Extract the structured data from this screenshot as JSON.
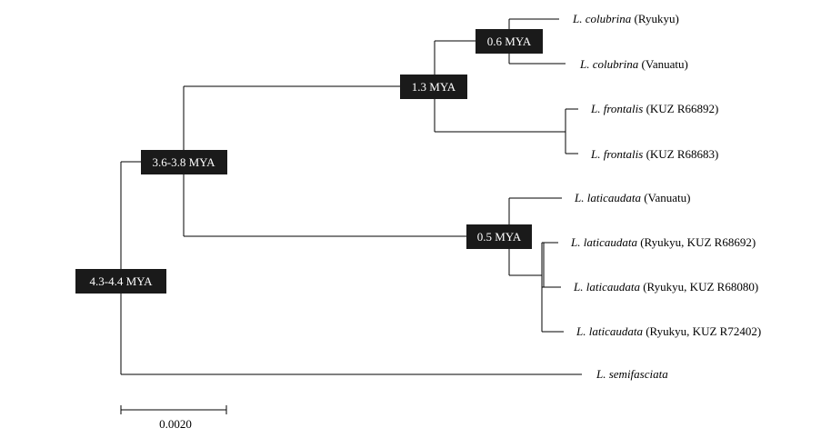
{
  "tree": {
    "nodes": {
      "root": "4.3-4.4 MYA",
      "n_laticauda_colubrina": "3.6-3.8 MYA",
      "n_colubrina_frontalis": "1.3 MYA",
      "n_colubrina": "0.6 MYA",
      "n_laticaudata": "0.5 MYA"
    },
    "taxa": {
      "colubrina_ryukyu": {
        "species": "L. colubrina",
        "detail": " (Ryukyu)"
      },
      "colubrina_vanuatu": {
        "species": "L. colubrina",
        "detail": " (Vanuatu)"
      },
      "frontalis_66892": {
        "species": "L. frontalis",
        "detail": " (KUZ R66892)"
      },
      "frontalis_68683": {
        "species": "L. frontalis",
        "detail": " (KUZ R68683)"
      },
      "laticaudata_vanuatu": {
        "species": "L. laticaudata",
        "detail": " (Vanuatu)"
      },
      "laticaudata_68692": {
        "species": "L. laticaudata",
        "detail": " (Ryukyu, KUZ R68692)"
      },
      "laticaudata_68080": {
        "species": "L. laticaudata",
        "detail": " (Ryukyu, KUZ R68080)"
      },
      "laticaudata_72402": {
        "species": "L. laticaudata",
        "detail": " (Ryukyu, KUZ R72402)"
      },
      "semifasciata": {
        "species": "L. semifasciata",
        "detail": ""
      }
    },
    "scale_bar": "0.0020"
  }
}
